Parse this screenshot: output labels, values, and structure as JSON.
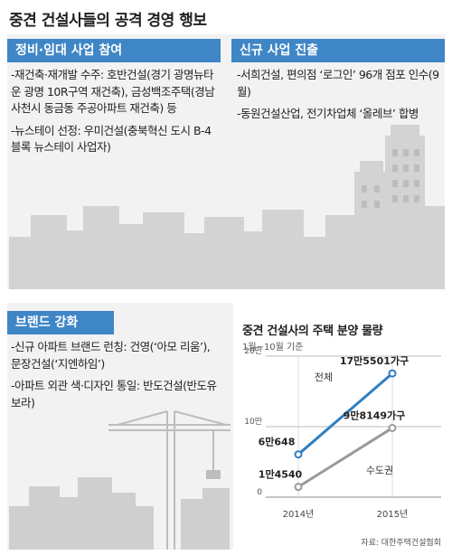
{
  "title": "중견 건설사들의 공격 경영 행보",
  "sections": {
    "renewal": {
      "heading": "정비·임대 사업 참여",
      "items": [
        "-재건축·재개발 수주: 호반건설(경기 광명뉴타운 광명 10R구역 재건축), 금성백조주택(경남 사천시 동금동 주공아파트 재건축) 등",
        "-뉴스테이 선정: 우미건설(충북혁신 도시 B-4블록 뉴스테이 사업자)"
      ]
    },
    "new_business": {
      "heading": "신규 사업 진출",
      "items": [
        "-서희건설, 편의점 ‘로그인’ 96개 점포 인수(9월)",
        "-동원건설산업, 전기차업체 ‘올레브’ 합병"
      ]
    },
    "brand": {
      "heading": "브랜드 강화",
      "items": [
        "-신규 아파트 브랜드 런칭: 건영(‘아모 리움’), 문장건설(‘지엔하임’)",
        "-아파트 외관 색·디자인 통일: 반도건설(반도유보라)"
      ]
    }
  },
  "colors": {
    "accent": "#3f86c6",
    "series_total": "#2f7fc3",
    "series_metro": "#9a9a9a",
    "buildings": "#d5d5d5"
  },
  "chart": {
    "title": "중견 건설사의 주택 분양 물량",
    "subtitle": "1월~10월 기준",
    "source": "자료: 대한주택건설협회",
    "y_ticks": [
      "20만",
      "10만",
      "0"
    ],
    "labels": {
      "total_2014": "6만648",
      "total_2015": "17만5501가구",
      "metro_2014": "1만4540",
      "metro_2015": "9만8149가구",
      "total_name": "전체",
      "metro_name": "수도권"
    },
    "x_labels": [
      "2014년",
      "2015년"
    ]
  },
  "chart_data": {
    "type": "line",
    "title": "중견 건설사의 주택 분양 물량",
    "x": [
      "2014년",
      "2015년"
    ],
    "series": [
      {
        "name": "전체",
        "values": [
          60648,
          175501
        ]
      },
      {
        "name": "수도권",
        "values": [
          14540,
          98149
        ]
      }
    ],
    "ylim": [
      0,
      200000
    ],
    "y_ticks": [
      0,
      100000,
      200000
    ],
    "grid": true
  }
}
